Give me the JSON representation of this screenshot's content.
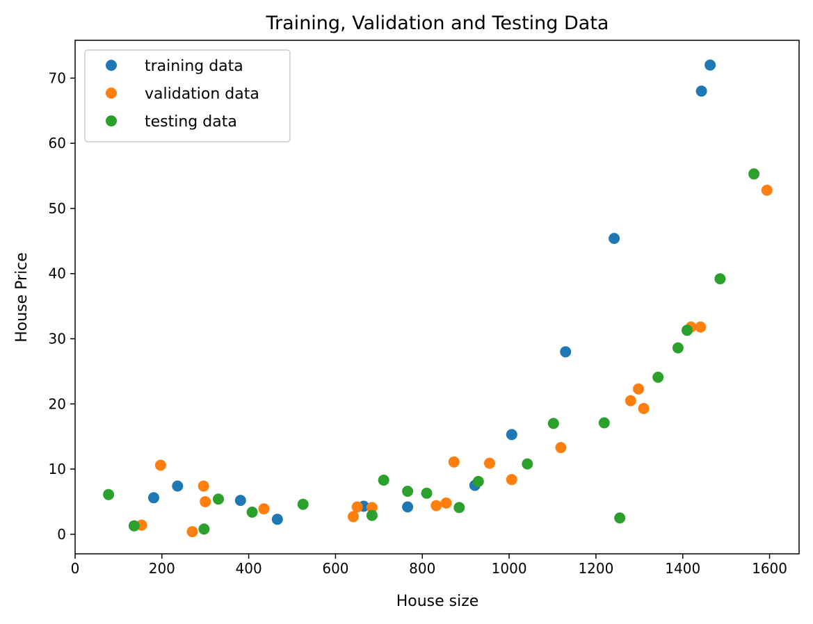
{
  "chart_data": {
    "type": "scatter",
    "title": "Training, Validation and Testing Data",
    "xlabel": "House size",
    "ylabel": "House Price",
    "xlim": [
      0,
      1668
    ],
    "ylim": [
      -3,
      75.8
    ],
    "xticks": [
      0,
      200,
      400,
      600,
      800,
      1000,
      1200,
      1400,
      1600
    ],
    "yticks": [
      0,
      10,
      20,
      30,
      40,
      50,
      60,
      70
    ],
    "grid": false,
    "legend_position": "top-left",
    "series": [
      {
        "name": "training data",
        "color": "#1f77b4",
        "points": [
          [
            181,
            5.6
          ],
          [
            236,
            7.4
          ],
          [
            381,
            5.2
          ],
          [
            466,
            2.3
          ],
          [
            665,
            4.3
          ],
          [
            766,
            4.2
          ],
          [
            921,
            7.5
          ],
          [
            1006,
            15.3
          ],
          [
            1130,
            28.0
          ],
          [
            1242,
            45.4
          ],
          [
            1443,
            68.0
          ],
          [
            1463,
            72.0
          ]
        ]
      },
      {
        "name": "validation data",
        "color": "#ff7f0e",
        "points": [
          [
            153,
            1.4
          ],
          [
            197,
            10.6
          ],
          [
            270,
            0.4
          ],
          [
            296,
            7.4
          ],
          [
            300,
            5.0
          ],
          [
            435,
            3.9
          ],
          [
            641,
            2.7
          ],
          [
            650,
            4.2
          ],
          [
            684,
            4.1
          ],
          [
            832,
            4.4
          ],
          [
            855,
            4.8
          ],
          [
            873,
            11.1
          ],
          [
            955,
            10.9
          ],
          [
            1006,
            8.4
          ],
          [
            1119,
            13.3
          ],
          [
            1280,
            20.5
          ],
          [
            1298,
            22.3
          ],
          [
            1310,
            19.3
          ],
          [
            1419,
            31.8
          ],
          [
            1441,
            31.8
          ],
          [
            1594,
            52.8
          ]
        ]
      },
      {
        "name": "testing data",
        "color": "#2ca02c",
        "points": [
          [
            77,
            6.1
          ],
          [
            136,
            1.3
          ],
          [
            297,
            0.8
          ],
          [
            330,
            5.4
          ],
          [
            408,
            3.4
          ],
          [
            525,
            4.6
          ],
          [
            684,
            2.9
          ],
          [
            711,
            8.3
          ],
          [
            766,
            6.6
          ],
          [
            810,
            6.3
          ],
          [
            885,
            4.1
          ],
          [
            929,
            8.1
          ],
          [
            1042,
            10.8
          ],
          [
            1102,
            17.0
          ],
          [
            1219,
            17.1
          ],
          [
            1255,
            2.5
          ],
          [
            1343,
            24.1
          ],
          [
            1389,
            28.6
          ],
          [
            1410,
            31.3
          ],
          [
            1486,
            39.2
          ],
          [
            1564,
            55.3
          ]
        ]
      }
    ]
  }
}
